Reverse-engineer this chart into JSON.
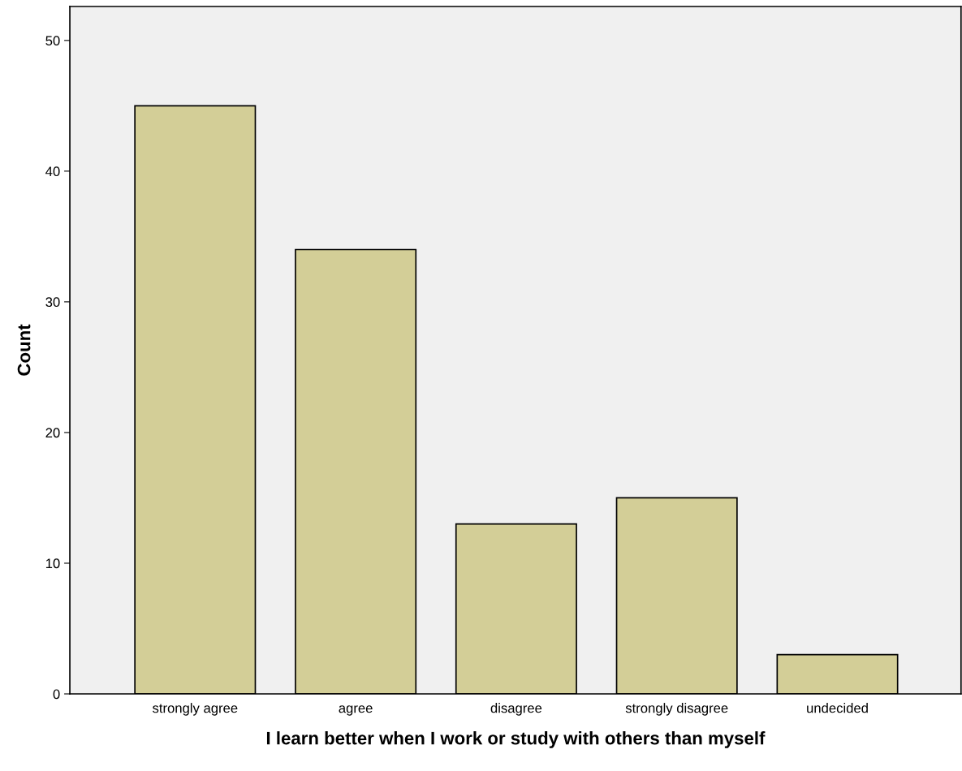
{
  "chart_data": {
    "type": "bar",
    "xlabel": "I learn better when I work or study with others than myself",
    "ylabel": "Count",
    "categories": [
      "strongly agree",
      "agree",
      "disagree",
      "strongly disagree",
      "undecided"
    ],
    "values": [
      45,
      34,
      13,
      15,
      3
    ],
    "color": "#d3ce97",
    "ylim": [
      0,
      52.6
    ],
    "yticks": [
      0,
      10,
      20,
      30,
      40,
      50
    ],
    "grid": false
  }
}
